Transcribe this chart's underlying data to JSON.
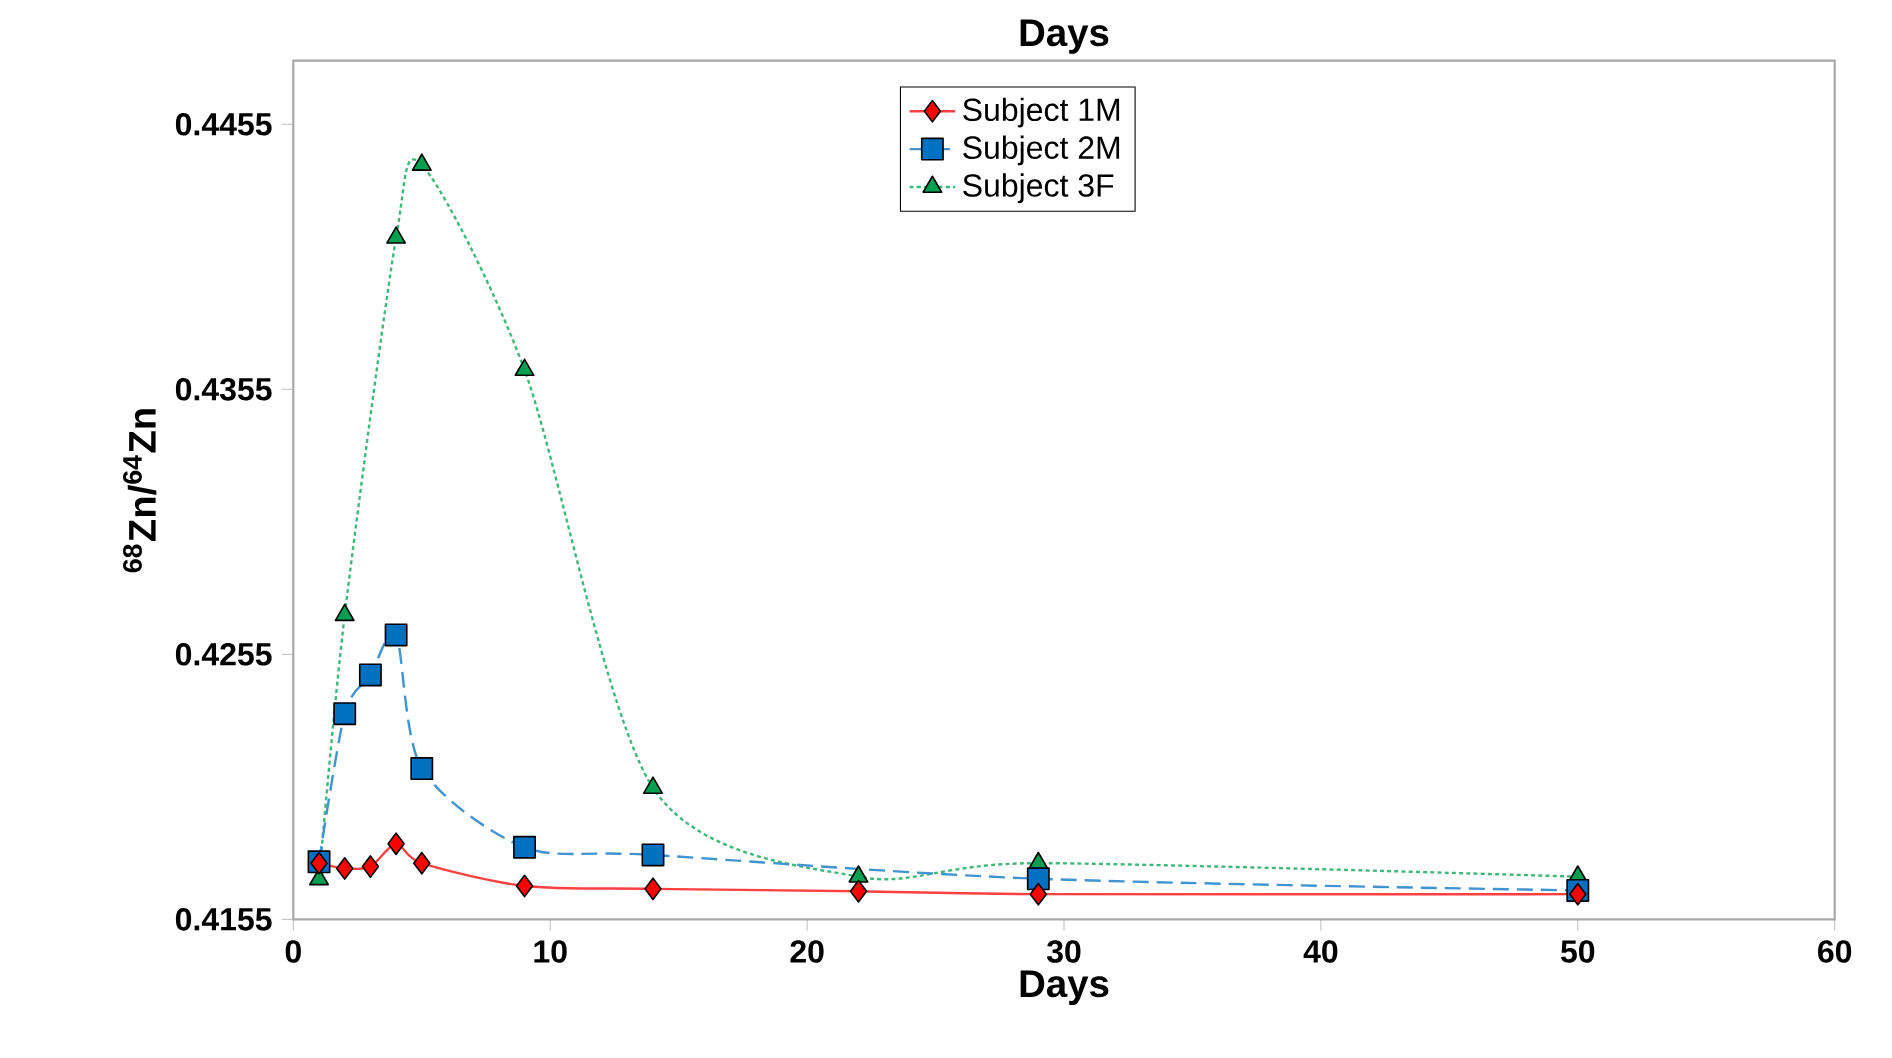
{
  "chart_data": {
    "type": "line",
    "title": "Days",
    "xlabel": "Days",
    "ylabel": "$^{68}$Zn/$^{64}$Zn",
    "xlim": [
      0,
      60
    ],
    "xticks": [
      0,
      10,
      20,
      30,
      40,
      50,
      60
    ],
    "ylim": [
      0.4155,
      0.4479
    ],
    "yticks": [
      0.4155,
      0.4255,
      0.4355,
      0.4455
    ],
    "legend": "top",
    "grid": false,
    "series": [
      {
        "name": "Subject 1M",
        "color": "#ff0000",
        "marker": "diamond",
        "line_style": "solid",
        "x": [
          1,
          2,
          3,
          4,
          5,
          9,
          14,
          22,
          29,
          50
        ],
        "values": [
          0.41762,
          0.41742,
          0.41749,
          0.41835,
          0.41762,
          0.41676,
          0.41665,
          0.41656,
          0.41645,
          0.41645
        ]
      },
      {
        "name": "Subject 2M",
        "color": "#0070c0",
        "marker": "square",
        "line_style": "dashed",
        "x": [
          1,
          2,
          3,
          4,
          5,
          9,
          14,
          29,
          50
        ],
        "values": [
          0.41767,
          0.42326,
          0.42472,
          0.42623,
          0.42119,
          0.41822,
          0.41793,
          0.41703,
          0.41659
        ]
      },
      {
        "name": "Subject 3F",
        "color": "#00a050",
        "marker": "triangle",
        "line_style": "dotted",
        "x": [
          1,
          2,
          4,
          5,
          9,
          14,
          22,
          29,
          50
        ],
        "values": [
          0.41701,
          0.42698,
          0.44122,
          0.44397,
          0.43623,
          0.42046,
          0.41711,
          0.41762,
          0.41711
        ]
      }
    ]
  }
}
